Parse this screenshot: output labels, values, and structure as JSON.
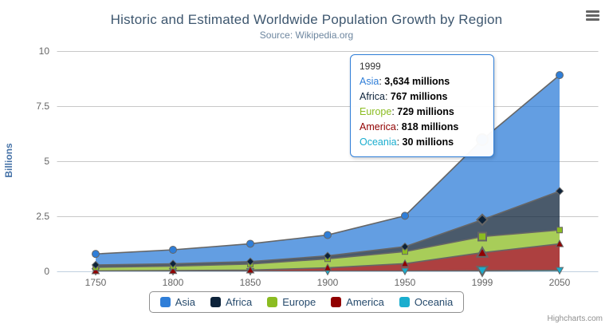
{
  "chart_data": {
    "type": "area",
    "stacking": "normal",
    "title": "Historic and Estimated Worldwide Population Growth by Region",
    "subtitle": "Source: Wikipedia.org",
    "categories": [
      "1750",
      "1800",
      "1850",
      "1900",
      "1950",
      "1999",
      "2050"
    ],
    "xlabel": "",
    "ylabel": "Billions",
    "unit": "millions",
    "ylim": [
      0,
      10
    ],
    "yticks": [
      0,
      2.5,
      5,
      7.5,
      10
    ],
    "ytick_labels": [
      "0",
      "2.5",
      "5",
      "7.5",
      "10"
    ],
    "grid": true,
    "legend_position": "bottom",
    "line_color": "#666666",
    "fill_opacity": 0.75,
    "hover_index": 5,
    "visual_stack_order_bottom_to_top": [
      "Oceania",
      "America",
      "Europe",
      "Africa",
      "Asia"
    ],
    "series": [
      {
        "name": "Asia",
        "color": "#2f7ed8",
        "marker": "circle",
        "values_millions": [
          502,
          635,
          809,
          947,
          1402,
          3634,
          5268
        ]
      },
      {
        "name": "Africa",
        "color": "#0d233a",
        "marker": "diamond",
        "values_millions": [
          106,
          107,
          111,
          133,
          221,
          767,
          1766
        ]
      },
      {
        "name": "Europe",
        "color": "#8bbc21",
        "marker": "square",
        "values_millions": [
          163,
          203,
          276,
          408,
          547,
          729,
          628
        ]
      },
      {
        "name": "America",
        "color": "#910000",
        "marker": "triangle",
        "values_millions": [
          18,
          31,
          54,
          156,
          339,
          818,
          1201
        ]
      },
      {
        "name": "Oceania",
        "color": "#1aadce",
        "marker": "triangle-down",
        "values_millions": [
          2,
          2,
          2,
          6,
          13,
          30,
          46
        ]
      }
    ]
  },
  "tooltip": {
    "header": "1999",
    "border_color": "#2f7ed8",
    "rows": [
      {
        "name": "Asia",
        "color": "#2f7ed8",
        "value": "3,634 millions"
      },
      {
        "name": "Africa",
        "color": "#0d233a",
        "value": "767 millions"
      },
      {
        "name": "Europe",
        "color": "#8bbc21",
        "value": "729 millions"
      },
      {
        "name": "America",
        "color": "#910000",
        "value": "818 millions"
      },
      {
        "name": "Oceania",
        "color": "#1aadce",
        "value": "30 millions"
      }
    ]
  },
  "axis_colors": {
    "grid_line": "#C8C8C8",
    "x_axis_line": "#C0D0E0",
    "tick_label": "#666666",
    "y_title": "#4572A7"
  },
  "icons": {
    "menu": "hamburger-icon"
  },
  "credit": "Highcharts.com"
}
